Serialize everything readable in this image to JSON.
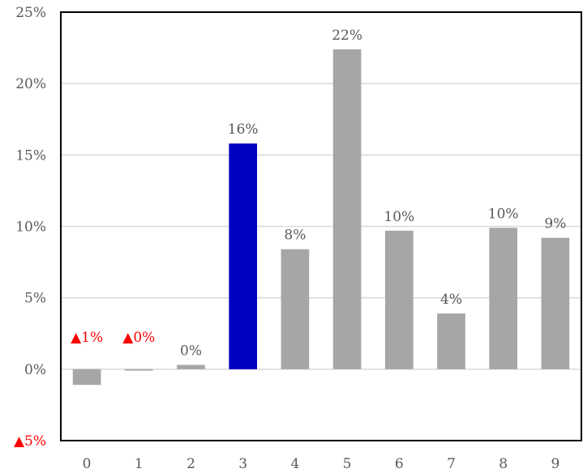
{
  "chart_data": {
    "type": "bar",
    "title": "",
    "xlabel": "",
    "ylabel": "",
    "categories": [
      "0",
      "1",
      "2",
      "3",
      "4",
      "5",
      "6",
      "7",
      "8",
      "9"
    ],
    "values": [
      -1.1,
      -0.1,
      0.3,
      15.8,
      8.4,
      22.4,
      9.7,
      3.9,
      9.9,
      9.2
    ],
    "data_labels": [
      "▲1%",
      "▲0%",
      "0%",
      "16%",
      "8%",
      "22%",
      "10%",
      "4%",
      "10%",
      "9%"
    ],
    "negative_label_indices": [
      0,
      1
    ],
    "highlight_index": 3,
    "ylim": [
      -5,
      25
    ],
    "yticks": [
      25,
      20,
      15,
      10,
      5,
      0,
      -5
    ],
    "ytick_labels": [
      "25%",
      "20%",
      "15%",
      "10%",
      "5%",
      "0%",
      "▲5%"
    ],
    "negative_ytick_indices": [
      6
    ],
    "grid": true,
    "colors": {
      "bar": "#a6a6a6",
      "highlight": "#0000c0",
      "grid": "#d9d9d9",
      "axis": "#000000",
      "text": "#595959",
      "negative_text": "#ff0000"
    }
  }
}
